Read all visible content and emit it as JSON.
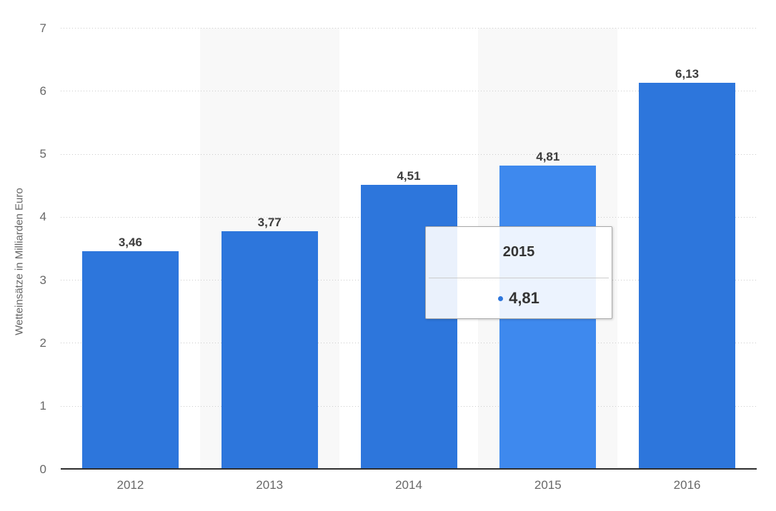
{
  "chart_data": {
    "type": "bar",
    "title": "",
    "categories": [
      "2012",
      "2013",
      "2014",
      "2015",
      "2016"
    ],
    "values": [
      3.46,
      3.77,
      4.51,
      4.81,
      6.13
    ],
    "value_labels": [
      "3,46",
      "3,77",
      "4,51",
      "4,81",
      "6,13"
    ],
    "xlabel": "",
    "ylabel": "Wetteinsätze in Milliarden Euro",
    "ylim": [
      0,
      7
    ],
    "yticks": [
      0,
      1,
      2,
      3,
      4,
      5,
      6,
      7
    ],
    "grid": "horizontal-dotted",
    "legend": "none",
    "highlighted_index": 3,
    "colors": {
      "bar": "#2d76dc",
      "bar_highlight": "#3e89ee",
      "band": "#f8f8f8",
      "gridline": "#cccccc",
      "axis_line": "#2e2e2e",
      "axis_text": "#686868",
      "value_text": "#3d3d3d",
      "tooltip_dot": "#2d76dc"
    }
  },
  "tooltip": {
    "title": "2015",
    "value": "4,81"
  }
}
